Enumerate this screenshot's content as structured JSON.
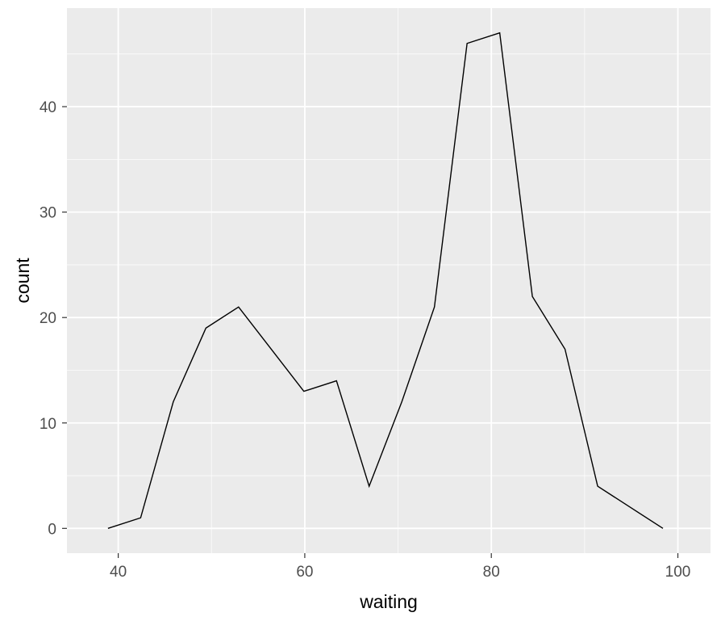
{
  "chart_data": {
    "type": "line",
    "title": "",
    "xlabel": "waiting",
    "ylabel": "count",
    "xlim": [
      34.5,
      103.5
    ],
    "ylim": [
      -2.35,
      49.35
    ],
    "x_major_ticks": [
      40,
      60,
      80,
      100
    ],
    "x_minor_ticks": [
      50,
      70,
      90
    ],
    "y_major_ticks": [
      0,
      10,
      20,
      30,
      40
    ],
    "y_minor_ticks": [
      5,
      15,
      25,
      35,
      45
    ],
    "x_tick_labels": [
      "40",
      "60",
      "80",
      "100"
    ],
    "y_tick_labels": [
      "0",
      "10",
      "20",
      "30",
      "40"
    ],
    "grid": true,
    "legend": "none",
    "series": [
      {
        "x": [
          38.9,
          42.4,
          45.9,
          49.4,
          52.9,
          56.4,
          59.9,
          63.4,
          66.9,
          70.4,
          73.9,
          77.4,
          80.9,
          84.4,
          87.9,
          91.4,
          94.9,
          98.4
        ],
        "values": [
          0,
          1,
          12,
          19,
          21,
          17,
          13,
          14,
          4,
          12,
          21,
          46,
          47,
          22,
          17,
          4,
          2,
          0
        ]
      }
    ],
    "colors": {
      "panel_background": "#EBEBEB",
      "grid_major": "#FFFFFF",
      "line": "#000000",
      "tick_text": "#4D4D4D",
      "tick_mark": "#333333"
    }
  }
}
